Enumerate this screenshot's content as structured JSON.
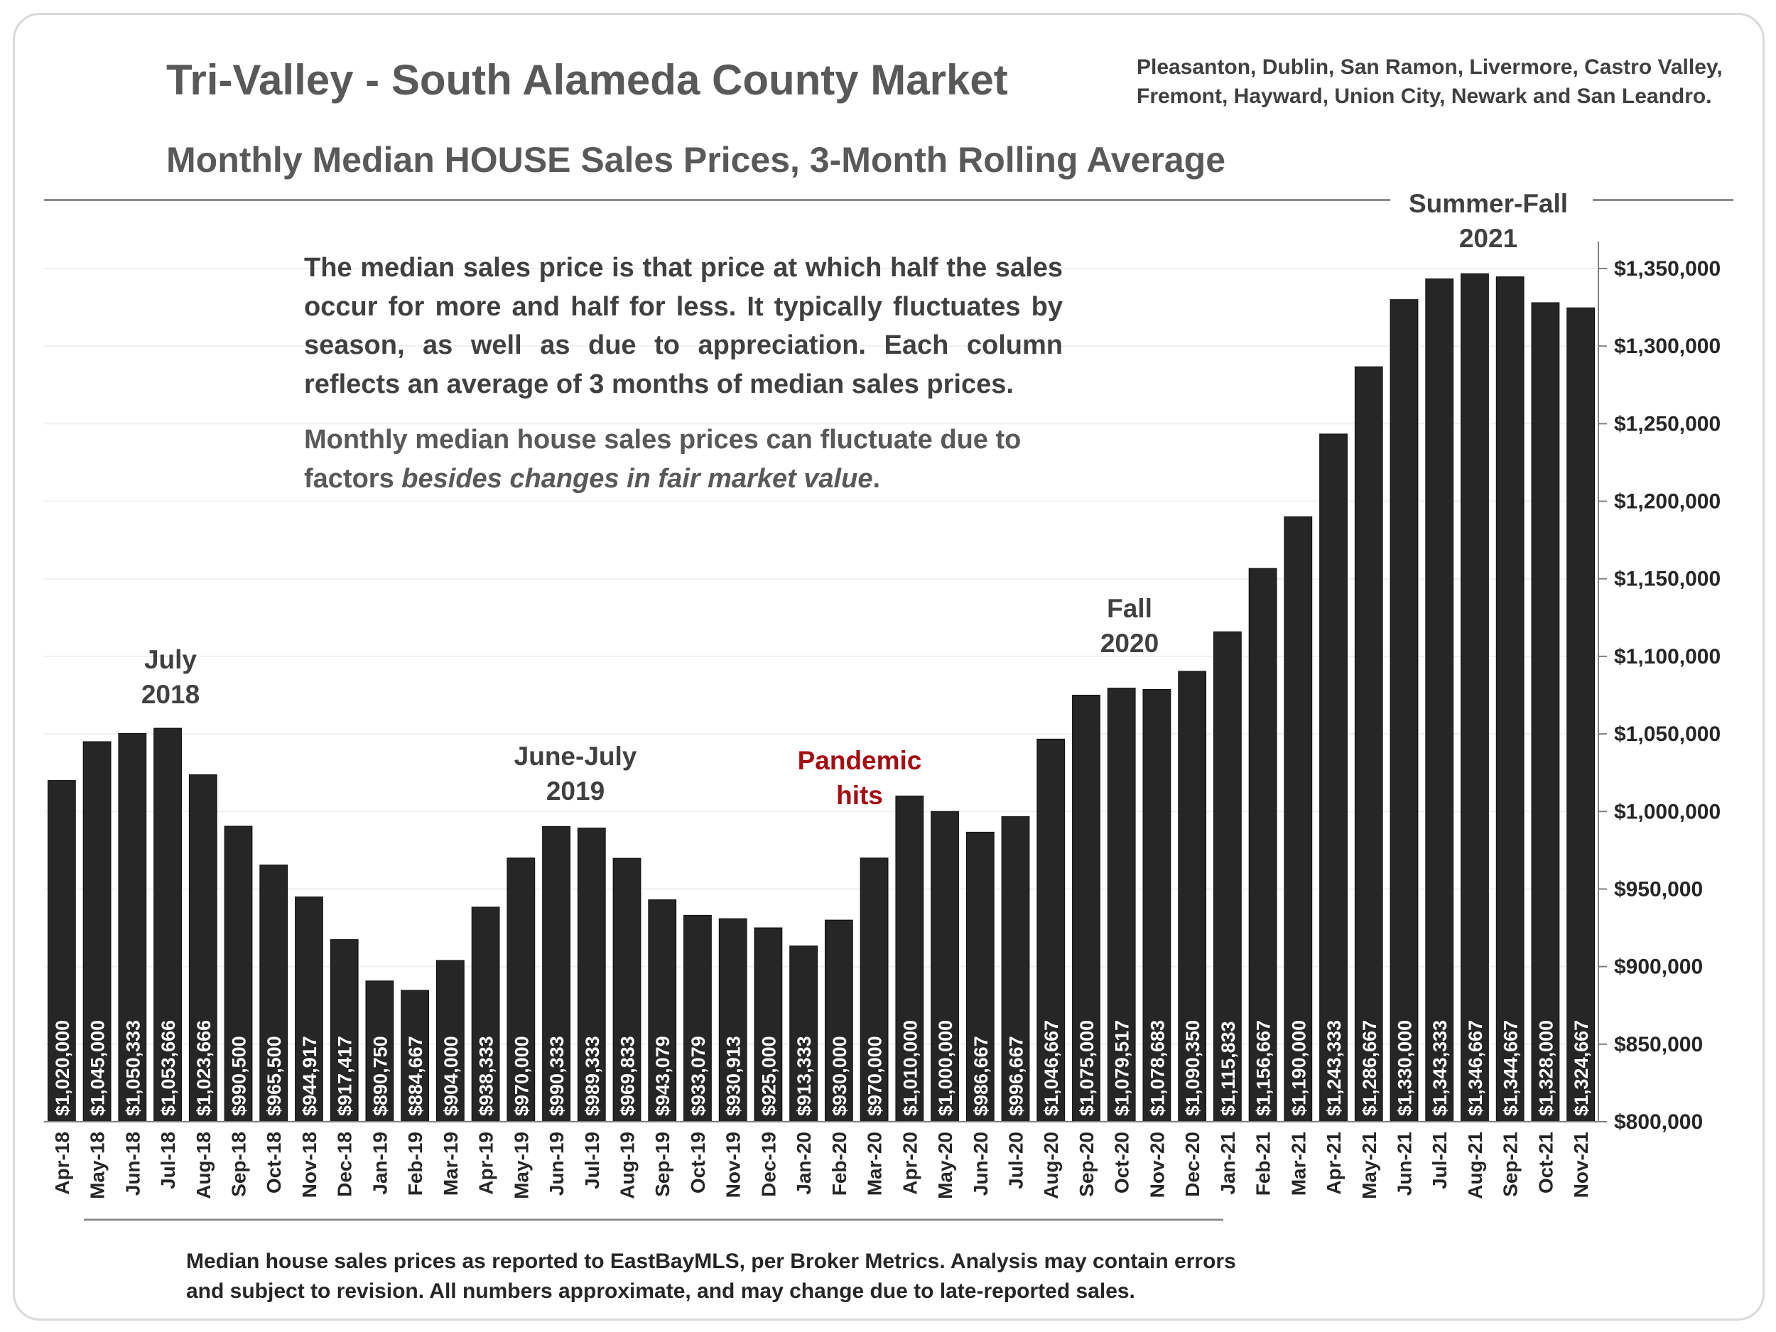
{
  "header": {
    "title": "Tri-Valley - South Alameda County Market",
    "regions_line1": "Pleasanton, Dublin, San Ramon, Livermore, Castro Valley,",
    "regions_line2": "Fremont, Hayward, Union City, Newark and San Leandro.",
    "subtitle": "Monthly Median HOUSE Sales Prices, 3-Month Rolling Average"
  },
  "explanation": {
    "paragraph1": "The median sales price is that price at which half the sales occur for more and half for less. It typically fluctuates by season, as well as due to appreciation. Each column reflects an average of 3 months of median sales prices.",
    "paragraph2_start": "Monthly median house sales prices can fluctuate due to factors ",
    "paragraph2_emphasis": "besides changes in fair market value",
    "paragraph2_end": "."
  },
  "annotations": {
    "july_2018_l1": "July",
    "july_2018_l2": "2018",
    "june_july_2019_l1": "June-July",
    "june_july_2019_l2": "2019",
    "pandemic_l1": "Pandemic",
    "pandemic_l2": "hits",
    "fall_2020_l1": "Fall",
    "fall_2020_l2": "2020",
    "summer_fall_2021_l1": "Summer-Fall",
    "summer_fall_2021_l2": "2021"
  },
  "footnote": {
    "line1": "Median house sales prices as reported to EastBayMLS, per Broker Metrics. Analysis may contain errors",
    "line2": "and subject to revision. All numbers approximate, and may change due to late-reported sales."
  },
  "colors": {
    "bar": "#262626",
    "text": "#404040",
    "accent_red": "#a50d12"
  },
  "chart_data": {
    "type": "bar",
    "title": "Monthly Median HOUSE Sales Prices, 3-Month Rolling Average",
    "categories": [
      "Apr-18",
      "May-18",
      "Jun-18",
      "Jul-18",
      "Aug-18",
      "Sep-18",
      "Oct-18",
      "Nov-18",
      "Dec-18",
      "Jan-19",
      "Feb-19",
      "Mar-19",
      "Apr-19",
      "May-19",
      "Jun-19",
      "Jul-19",
      "Aug-19",
      "Sep-19",
      "Oct-19",
      "Nov-19",
      "Dec-19",
      "Jan-20",
      "Feb-20",
      "Mar-20",
      "Apr-20",
      "May-20",
      "Jun-20",
      "Jul-20",
      "Aug-20",
      "Sep-20",
      "Oct-20",
      "Nov-20",
      "Dec-20",
      "Jan-21",
      "Feb-21",
      "Mar-21",
      "Apr-21",
      "May-21",
      "Jun-21",
      "Jul-21",
      "Aug-21",
      "Sep-21",
      "Oct-21",
      "Nov-21"
    ],
    "values": [
      1020000,
      1045000,
      1050333,
      1053666,
      1023666,
      990500,
      965500,
      944917,
      917417,
      890750,
      884667,
      904000,
      938333,
      970000,
      990333,
      989333,
      969833,
      943079,
      933079,
      930913,
      925000,
      913333,
      930000,
      970000,
      1010000,
      1000000,
      986667,
      996667,
      1046667,
      1075000,
      1079517,
      1078683,
      1090350,
      1115833,
      1156667,
      1190000,
      1243333,
      1286667,
      1330000,
      1343333,
      1346667,
      1344667,
      1328000,
      1324667
    ],
    "data_labels": [
      "$1,020,000",
      "$1,045,000",
      "$1,050,333",
      "$1,053,666",
      "$1,023,666",
      "$990,500",
      "$965,500",
      "$944,917",
      "$917,417",
      "$890,750",
      "$884,667",
      "$904,000",
      "$938,333",
      "$970,000",
      "$990,333",
      "$989,333",
      "$969,833",
      "$943,079",
      "$933,079",
      "$930,913",
      "$925,000",
      "$913,333",
      "$930,000",
      "$970,000",
      "$1,010,000",
      "$1,000,000",
      "$986,667",
      "$996,667",
      "$1,046,667",
      "$1,075,000",
      "$1,079,517",
      "$1,078,683",
      "$1,090,350",
      "$1,115,833",
      "$1,156,667",
      "$1,190,000",
      "$1,243,333",
      "$1,286,667",
      "$1,330,000",
      "$1,343,333",
      "$1,346,667",
      "$1,344,667",
      "$1,328,000",
      "$1,324,667"
    ],
    "ylim": [
      800000,
      1350000
    ],
    "yticks": [
      800000,
      850000,
      900000,
      950000,
      1000000,
      1050000,
      1100000,
      1150000,
      1200000,
      1250000,
      1300000,
      1350000
    ],
    "ytick_labels": [
      "$800,000",
      "$850,000",
      "$900,000",
      "$950,000",
      "$1,000,000",
      "$1,050,000",
      "$1,100,000",
      "$1,150,000",
      "$1,200,000",
      "$1,250,000",
      "$1,300,000",
      "$1,350,000"
    ],
    "y_axis_position": "right",
    "grid": true,
    "legend": "none"
  }
}
